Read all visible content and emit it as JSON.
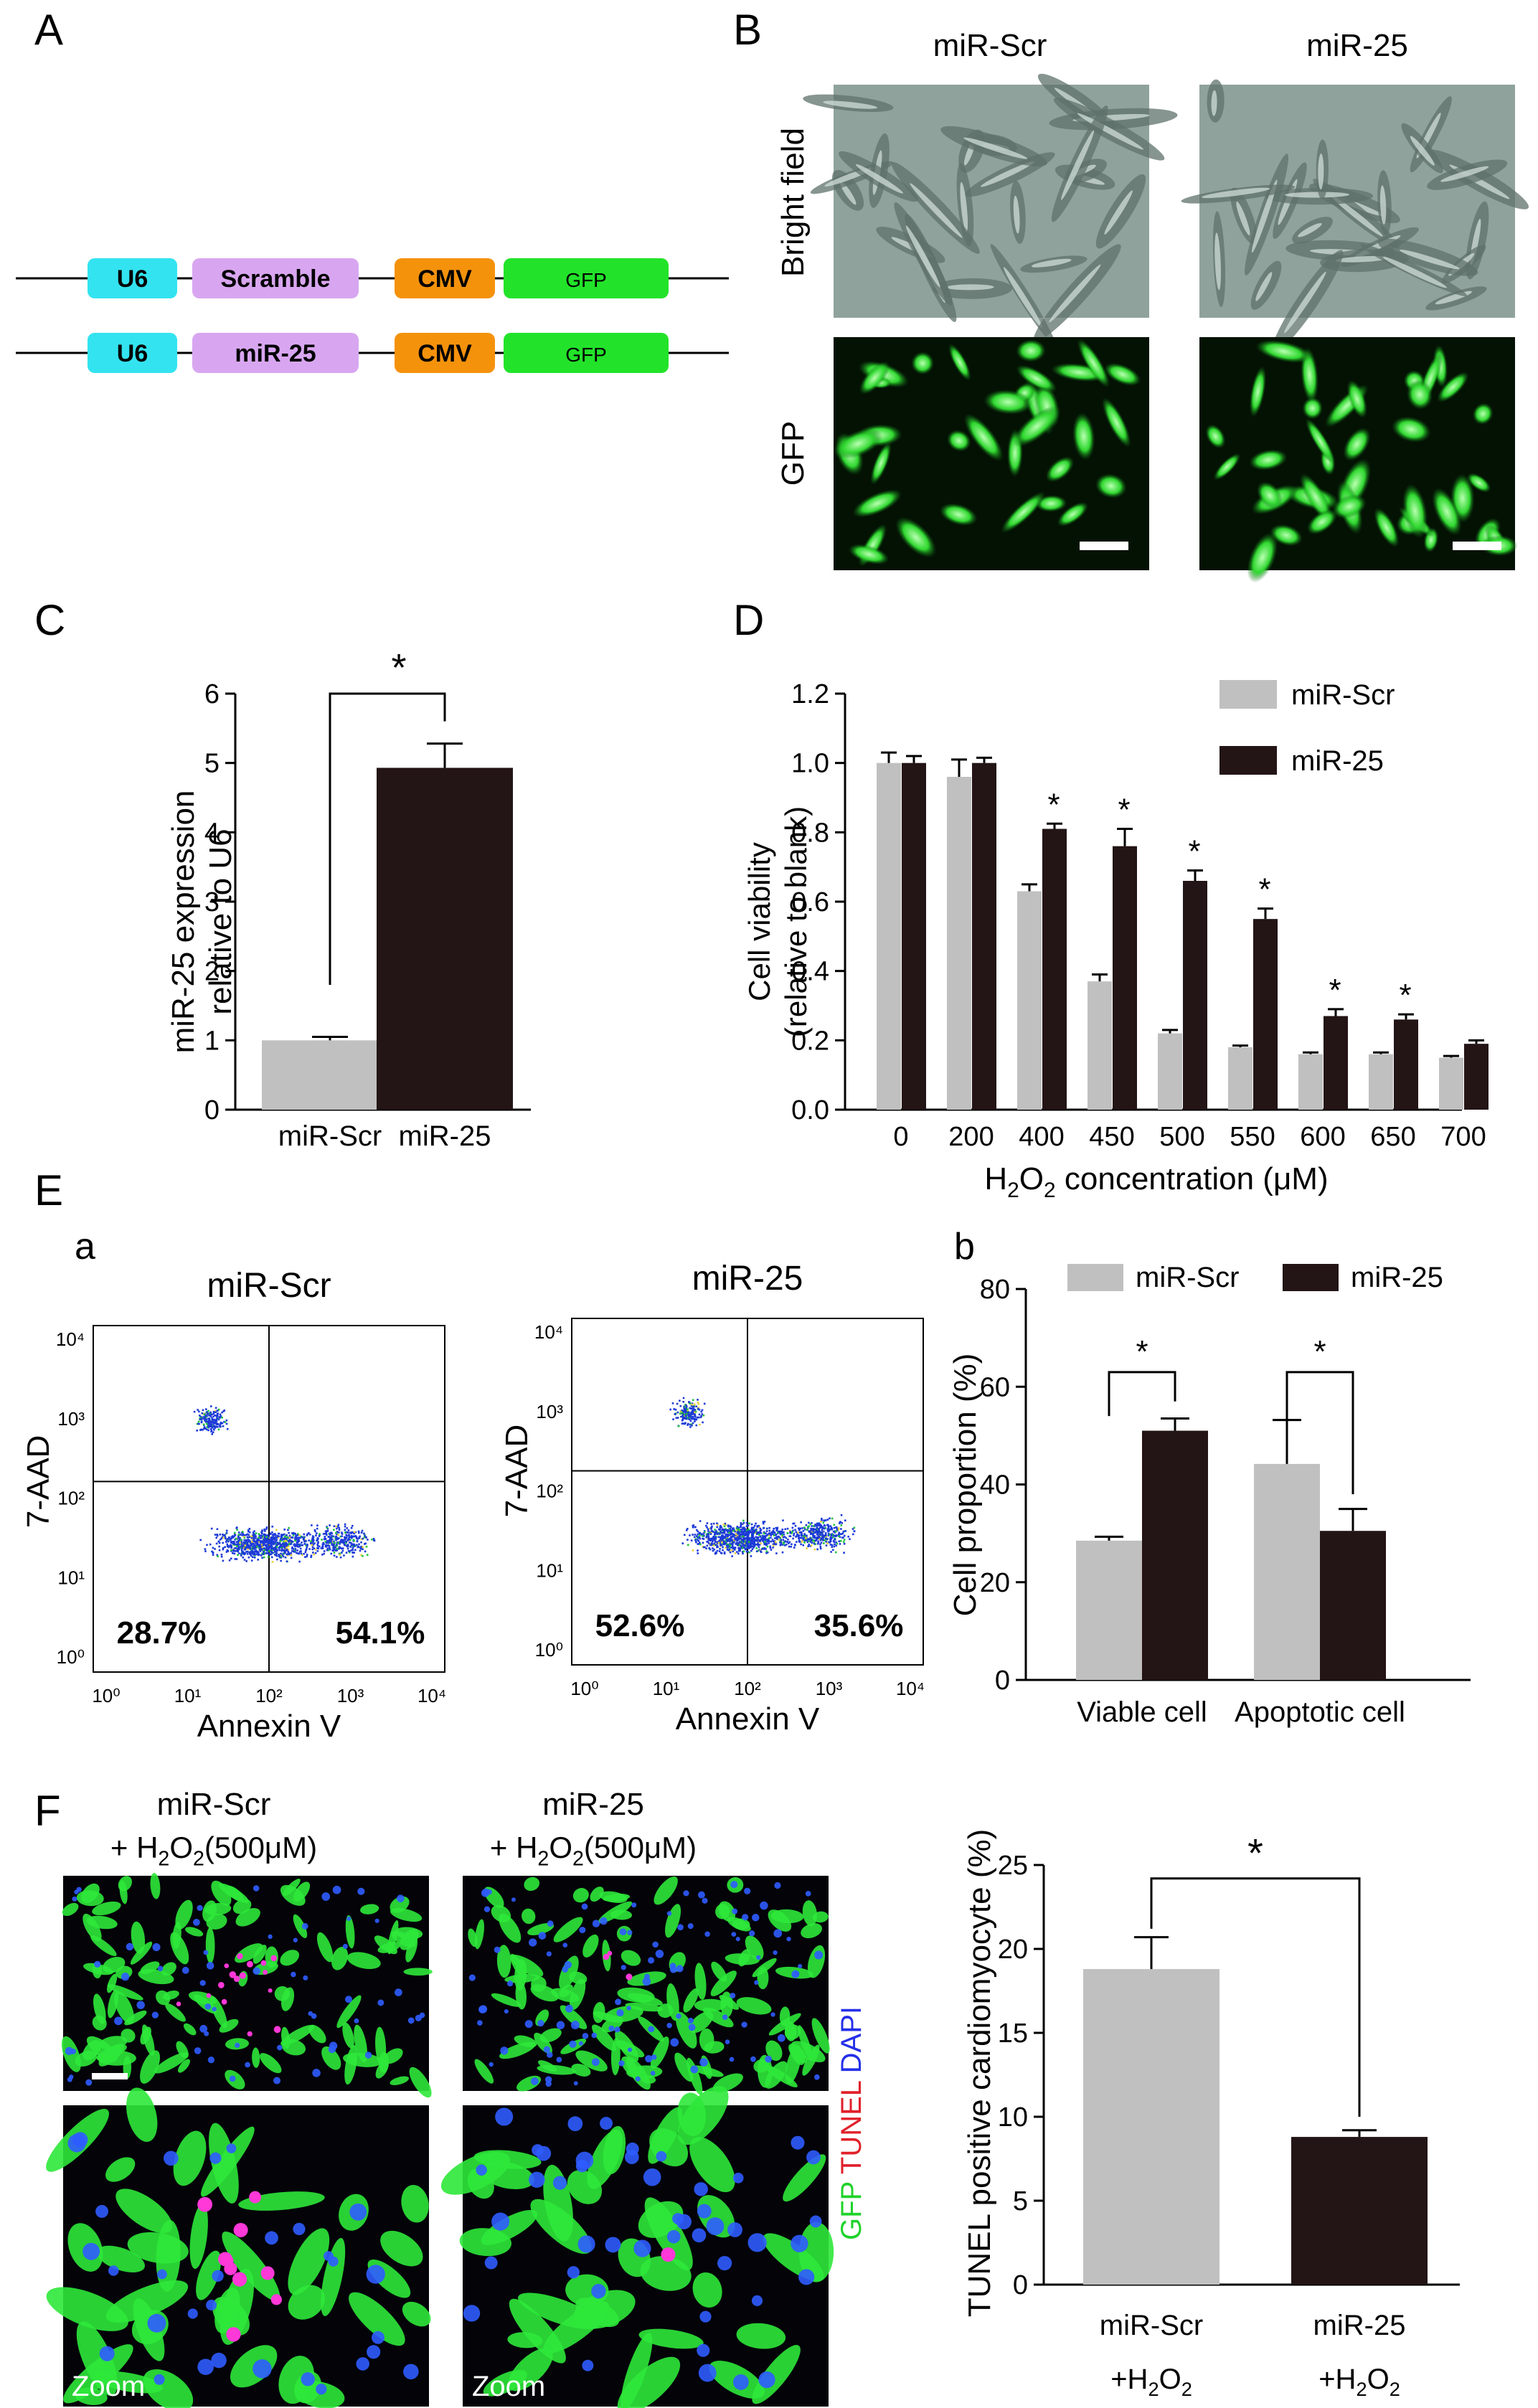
{
  "panels": {
    "A": {
      "label": "A",
      "constructs": [
        {
          "segments": [
            {
              "text": "U6",
              "color": "#33e3f0"
            },
            {
              "text": "Scramble",
              "color": "#d8a6f0"
            },
            {
              "text": "CMV",
              "color": "#f5920c"
            },
            {
              "text": "GFP",
              "color": "#22e32a"
            }
          ]
        },
        {
          "segments": [
            {
              "text": "U6",
              "color": "#33e3f0"
            },
            {
              "text": "miR-25",
              "color": "#d8a6f0"
            },
            {
              "text": "CMV",
              "color": "#f5920c"
            },
            {
              "text": "GFP",
              "color": "#22e32a"
            }
          ]
        }
      ]
    },
    "B": {
      "label": "B",
      "columns": [
        "miR-Scr",
        "miR-25"
      ],
      "rows": [
        "Bright field",
        "GFP"
      ]
    },
    "C": {
      "label": "C"
    },
    "D": {
      "label": "D"
    },
    "E": {
      "label": "E",
      "sub_a": "a",
      "sub_b": "b",
      "flow": [
        {
          "title": "miR-Scr",
          "ylabel": "7-AAD",
          "xlabel": "Annexin V",
          "left_pct": "28.7%",
          "right_pct": "54.1%"
        },
        {
          "title": "miR-25",
          "ylabel": "7-AAD",
          "xlabel": "Annexin V",
          "left_pct": "52.6%",
          "right_pct": "35.6%"
        }
      ],
      "flow_ticks": [
        "10⁰",
        "10¹",
        "10²",
        "10³",
        "10⁴"
      ]
    },
    "F": {
      "label": "F",
      "col1_title": "miR-Scr",
      "col2_title": "miR-25",
      "treatment_a": "+ H",
      "treatment_b": "O",
      "treatment_c": "(500μM)",
      "sub2": "2",
      "zoom": "Zoom",
      "stain_gfp": "GFP",
      "stain_tunel": "TUNEL",
      "stain_dapi": "DAPI"
    }
  },
  "chart_data": [
    {
      "panel": "C",
      "type": "bar",
      "categories": [
        "miR-Scr",
        "miR-25"
      ],
      "values": [
        1.0,
        4.93
      ],
      "errors": [
        0.05,
        0.35
      ],
      "colors": [
        "#c0c0c0",
        "#231415"
      ],
      "ylabel_line1": "miR-25 expression",
      "ylabel_line2": "relative to U6",
      "ylim": [
        0,
        6
      ],
      "yticks": [
        "0",
        "1",
        "2",
        "3",
        "4",
        "5",
        "6"
      ],
      "significance": "*"
    },
    {
      "panel": "D",
      "type": "bar",
      "categories": [
        "0",
        "200",
        "400",
        "450",
        "500",
        "550",
        "600",
        "650",
        "700"
      ],
      "series": [
        {
          "name": "miR-Scr",
          "color": "#c0c0c0",
          "values": [
            1.0,
            0.96,
            0.63,
            0.37,
            0.22,
            0.18,
            0.16,
            0.16,
            0.15
          ],
          "errors": [
            0.03,
            0.05,
            0.02,
            0.02,
            0.01,
            0.005,
            0.005,
            0.005,
            0.005
          ]
        },
        {
          "name": "miR-25",
          "color": "#231415",
          "values": [
            1.0,
            1.0,
            0.81,
            0.76,
            0.66,
            0.55,
            0.27,
            0.26,
            0.19
          ],
          "errors": [
            0.02,
            0.015,
            0.015,
            0.05,
            0.03,
            0.03,
            0.02,
            0.015,
            0.01
          ]
        }
      ],
      "significant": [
        "",
        "",
        "*",
        "*",
        "*",
        "*",
        "*",
        "*",
        ""
      ],
      "ylabel_line1": "Cell viability",
      "ylabel_line2": "(relative to blank)",
      "xlabel_a": "H",
      "xlabel_b": "O",
      "xlabel_c": " concentration (μM)",
      "ylim": [
        0,
        1.2
      ],
      "yticks": [
        "0.0",
        "0.2",
        "0.4",
        "0.6",
        "0.8",
        "1.0",
        "1.2"
      ]
    },
    {
      "panel": "E-b",
      "type": "bar",
      "categories": [
        "Viable cell",
        "Apoptotic cell"
      ],
      "series": [
        {
          "name": "miR-Scr",
          "color": "#c0c0c0",
          "values": [
            28.5,
            44.2
          ],
          "errors": [
            0.8,
            9.0
          ]
        },
        {
          "name": "miR-25",
          "color": "#231415",
          "values": [
            51.0,
            30.5
          ],
          "errors": [
            2.5,
            4.5
          ]
        }
      ],
      "ylabel": "Cell proportion (%)",
      "ylim": [
        0,
        80
      ],
      "yticks": [
        "0",
        "20",
        "40",
        "60",
        "80"
      ],
      "significance": "*"
    },
    {
      "panel": "F",
      "type": "bar",
      "categories": [
        "miR-Scr",
        "miR-25"
      ],
      "category_sub": "+H",
      "category_sub2": "O",
      "values": [
        18.8,
        8.8
      ],
      "errors": [
        1.9,
        0.4
      ],
      "colors": [
        "#c0c0c0",
        "#231415"
      ],
      "ylabel": "TUNEL positive cardiomyocyte (%)",
      "ylim": [
        0,
        25
      ],
      "yticks": [
        "0",
        "5",
        "10",
        "15",
        "20",
        "25"
      ],
      "significance": "*"
    }
  ]
}
